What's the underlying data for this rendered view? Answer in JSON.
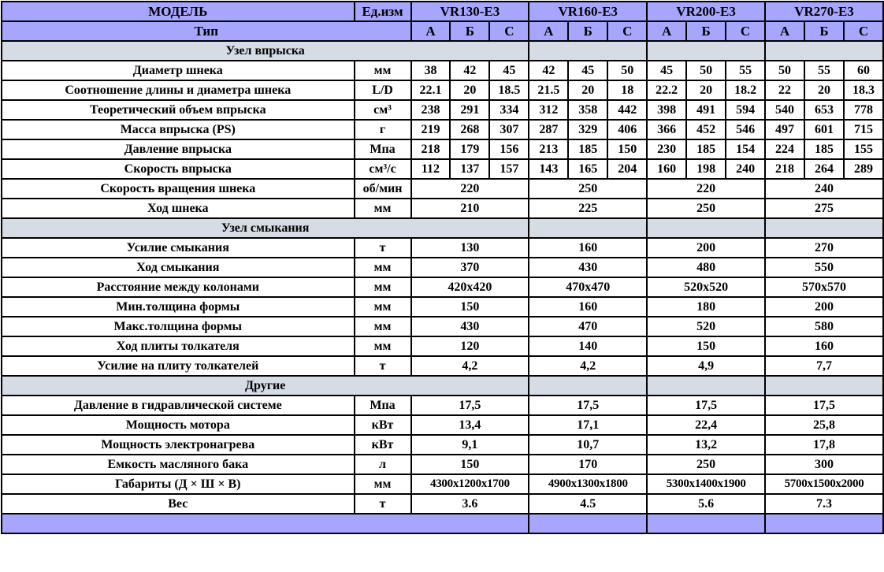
{
  "header": {
    "model_label": "МОДЕЛЬ",
    "unit_label": "Ед.изм",
    "models": [
      "VR130-E3",
      "VR160-E3",
      "VR200-E3",
      "VR270-E3"
    ],
    "type_label": "Тип",
    "types": [
      "А",
      "Б",
      "С"
    ]
  },
  "colors": {
    "header_bg": "#a6a6ff",
    "section_bg": "#d6dce4"
  },
  "sections": [
    {
      "title": "Узел впрыска",
      "rows": [
        {
          "label": "Диаметр шнека",
          "unit": "мм",
          "values": [
            "38",
            "42",
            "45",
            "42",
            "45",
            "50",
            "45",
            "50",
            "55",
            "50",
            "55",
            "60"
          ]
        },
        {
          "label": "Соотношение длины и диаметра шнека",
          "unit": "L/D",
          "values": [
            "22.1",
            "20",
            "18.5",
            "21.5",
            "20",
            "18",
            "22.2",
            "20",
            "18.2",
            "22",
            "20",
            "18.3"
          ]
        },
        {
          "label": "Теоретический объем впрыска",
          "unit": "см³",
          "values": [
            "238",
            "291",
            "334",
            "312",
            "358",
            "442",
            "398",
            "491",
            "594",
            "540",
            "653",
            "778"
          ]
        },
        {
          "label": "Масса впрыска (PS)",
          "unit": "г",
          "values": [
            "219",
            "268",
            "307",
            "287",
            "329",
            "406",
            "366",
            "452",
            "546",
            "497",
            "601",
            "715"
          ]
        },
        {
          "label": "Давление впрыска",
          "unit": "Мпа",
          "values": [
            "218",
            "179",
            "156",
            "213",
            "185",
            "150",
            "230",
            "185",
            "154",
            "224",
            "185",
            "155"
          ]
        },
        {
          "label": "Скорость впрыска",
          "unit": "см³/с",
          "values": [
            "112",
            "137",
            "157",
            "143",
            "165",
            "204",
            "160",
            "198",
            "240",
            "218",
            "264",
            "289"
          ]
        },
        {
          "label": "Скорость вращения шнека",
          "unit": "об/мин",
          "values": [
            "220",
            "250",
            "220",
            "240"
          ]
        },
        {
          "label": "Ход шнека",
          "unit": "мм",
          "values": [
            "210",
            "225",
            "250",
            "275"
          ]
        }
      ]
    },
    {
      "title": "Узел смыкания",
      "rows": [
        {
          "label": "Усилие смыкания",
          "unit": "т",
          "values": [
            "130",
            "160",
            "200",
            "270"
          ]
        },
        {
          "label": "Ход смыкания",
          "unit": "мм",
          "values": [
            "370",
            "430",
            "480",
            "550"
          ]
        },
        {
          "label": "Расстояние между колонами",
          "unit": "мм",
          "values": [
            "420x420",
            "470x470",
            "520x520",
            "570x570"
          ]
        },
        {
          "label": "Мин.толщина формы",
          "unit": "мм",
          "values": [
            "150",
            "160",
            "180",
            "200"
          ]
        },
        {
          "label": "Макс.толщина формы",
          "unit": "мм",
          "values": [
            "430",
            "470",
            "520",
            "580"
          ]
        },
        {
          "label": "Ход плиты толкателя",
          "unit": "мм",
          "values": [
            "120",
            "140",
            "150",
            "160"
          ]
        },
        {
          "label": "Усилие на плиту толкателей",
          "unit": "т",
          "values": [
            "4,2",
            "4,2",
            "4,9",
            "7,7"
          ]
        }
      ]
    },
    {
      "title": "Другие",
      "rows": [
        {
          "label": "Давление в гидравлической системе",
          "unit": "Мпа",
          "values": [
            "17,5",
            "17,5",
            "17,5",
            "17,5"
          ]
        },
        {
          "label": "Мощность мотора",
          "unit": "кВт",
          "values": [
            "13,4",
            "17,1",
            "22,4",
            "25,8"
          ]
        },
        {
          "label": "Мощность электронагрева",
          "unit": "кВт",
          "values": [
            "9,1",
            "10,7",
            "13,2",
            "17,8"
          ]
        },
        {
          "label": "Емкость масляного бака",
          "unit": "л",
          "values": [
            "150",
            "170",
            "250",
            "300"
          ]
        },
        {
          "label": "Габариты  (Д × Ш × В)",
          "unit": "мм",
          "values": [
            "4300x1200x1700",
            "4900x1300x1800",
            "5300x1400x1900",
            "5700x1500x2000"
          ]
        },
        {
          "label": "Вес",
          "unit": "т",
          "values": [
            "3.6",
            "4.5",
            "5.6",
            "7.3"
          ]
        }
      ]
    }
  ]
}
